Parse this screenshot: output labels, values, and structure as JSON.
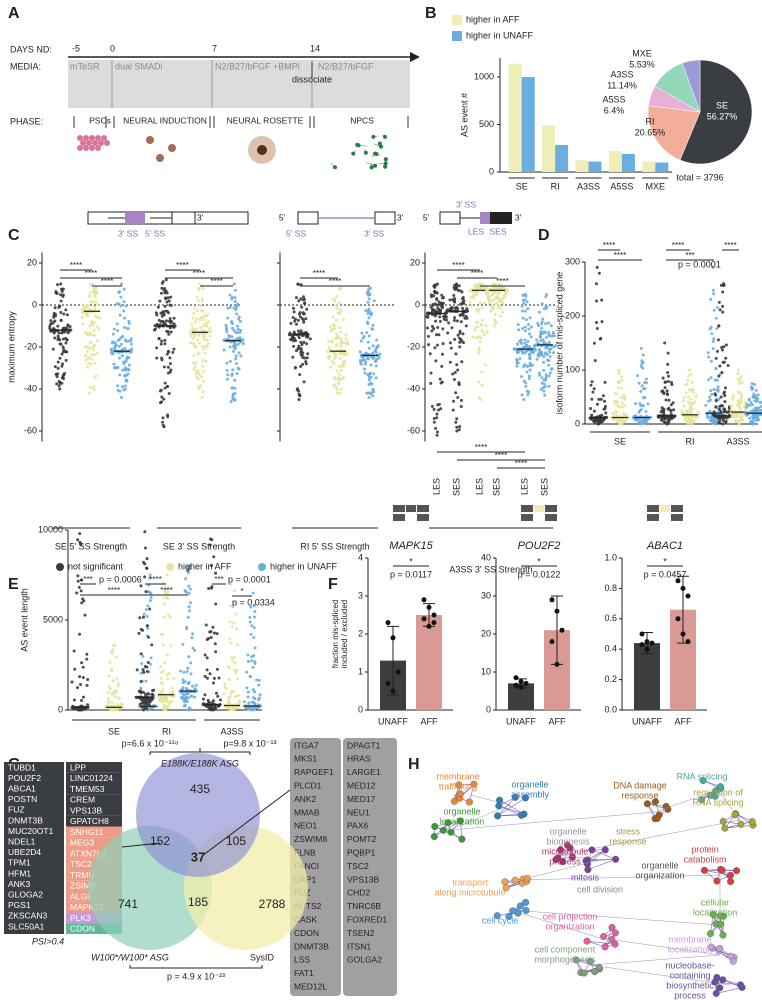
{
  "panel_labels": [
    "A",
    "B",
    "C",
    "D",
    "E",
    "F",
    "G",
    "H"
  ],
  "timeline": {
    "days_label": "DAYS ND:",
    "days": [
      "-5",
      "0",
      "7",
      "14"
    ],
    "media_label": "MEDIA:",
    "media": [
      "mTeSR",
      "dual SMADi",
      "N2/B27/bFGF +BMPi",
      "N2/B27/bFGF"
    ],
    "note": "dissociate",
    "phase_label": "PHASE:",
    "phases": [
      "PSCs",
      "NEURAL INDUCTION",
      "NEURAL ROSETTE",
      "NPCS"
    ]
  },
  "chart_data": [
    {
      "type": "bar",
      "categories": [
        "SE",
        "RI",
        "A3SS",
        "A5SS",
        "MXE"
      ],
      "series": [
        {
          "name": "higher in AFF",
          "color": "#efedb8",
          "values": [
            1140,
            490,
            125,
            220,
            110
          ]
        },
        {
          "name": "higher in UNAFF",
          "color": "#6aaee0",
          "values": [
            1000,
            285,
            110,
            190,
            100
          ]
        }
      ],
      "ylabel": "AS event #",
      "ylim": [
        0,
        1200
      ],
      "yticks": [
        0,
        500,
        1000
      ]
    },
    {
      "type": "pie",
      "categories": [
        "SE",
        "RI",
        "A5SS",
        "A3SS",
        "MXE"
      ],
      "values": [
        56.27,
        20.65,
        6.4,
        11.14,
        5.53
      ],
      "value_labels": [
        "56.27%",
        "20.65%",
        "6.4%",
        "11.14%",
        "5.53%"
      ],
      "colors": [
        "#3a3d42",
        "#f2ae98",
        "#e8b0d8",
        "#93d6b8",
        "#9a9ad6"
      ],
      "total_label": "total = 3796"
    },
    {
      "type": "strip",
      "ylabel": "maximum entropy",
      "ylim": [
        -65,
        25
      ],
      "yticks": [
        20,
        0,
        -20,
        -40,
        -60
      ],
      "series": [
        {
          "name": "not significant",
          "color": "#3b3b3b"
        },
        {
          "name": "higher in AFF",
          "color": "#e6e49c"
        },
        {
          "name": "higher in UNAFF",
          "color": "#6aaee0"
        }
      ],
      "groups": [
        {
          "label": "SE 5' SS Strength",
          "columns": [
            {
              "median": -12,
              "min": -40,
              "max": 10
            },
            {
              "median": -3,
              "min": -42,
              "max": 10
            },
            {
              "median": -22,
              "min": -44,
              "max": 10
            }
          ]
        },
        {
          "label": "SE 3' SS Strength",
          "columns": [
            {
              "median": -10,
              "min": -58,
              "max": 12
            },
            {
              "median": -13,
              "min": -44,
              "max": 10
            },
            {
              "median": -17,
              "min": -46,
              "max": 10
            }
          ]
        },
        {
          "label": "RI 5' SS Strength",
          "columns": [
            {
              "median": -14,
              "min": -45,
              "max": 10
            },
            {
              "median": -22,
              "min": -42,
              "max": 8
            },
            {
              "median": -24,
              "min": -44,
              "max": 8
            }
          ]
        },
        {
          "label": "A3SS 3' SS Strength",
          "column_labels": [
            "LES",
            "SES",
            "LES",
            "SES",
            "LES",
            "SES"
          ],
          "columns": [
            {
              "median": -4,
              "min": -62,
              "max": 10
            },
            {
              "median": -3,
              "min": -60,
              "max": 10
            },
            {
              "median": 7,
              "min": -45,
              "max": 10
            },
            {
              "median": 7,
              "min": -10,
              "max": 10
            },
            {
              "median": -21,
              "min": -45,
              "max": 5
            },
            {
              "median": -19,
              "min": -43,
              "max": 5
            }
          ]
        }
      ],
      "annotations": [
        "****",
        "****",
        "****",
        "****",
        "****",
        "****",
        "****",
        "****",
        "****",
        "****",
        "****",
        "****",
        "****",
        "****"
      ],
      "diagram_labels": [
        "3'",
        "3' SS",
        "5' SS",
        "5'",
        "3'",
        "5' SS",
        "3' SS",
        "5'",
        "3'",
        "3' SS",
        "LES",
        "SES"
      ]
    },
    {
      "type": "strip",
      "ylabel": "isoform number of mis-spliced gene",
      "ylim": [
        0,
        300
      ],
      "yticks": [
        0,
        100,
        200,
        300
      ],
      "colors": [
        "#3b3b3b",
        "#e6e49c",
        "#6aaee0"
      ],
      "groups": [
        {
          "label": "SE",
          "columns": [
            {
              "median": 12,
              "min": 0,
              "max": 290
            },
            {
              "median": 12,
              "min": 0,
              "max": 100
            },
            {
              "median": 12,
              "min": 0,
              "max": 140
            }
          ]
        },
        {
          "label": "RI",
          "columns": [
            {
              "median": 15,
              "min": 0,
              "max": 150
            },
            {
              "median": 17,
              "min": 0,
              "max": 100
            },
            {
              "median": 20,
              "min": 0,
              "max": 290
            }
          ]
        },
        {
          "label": "A3SS",
          "columns": [
            {
              "median": 15,
              "min": 0,
              "max": 260
            },
            {
              "median": 22,
              "min": 0,
              "max": 100
            },
            {
              "median": 20,
              "min": 0,
              "max": 75
            }
          ]
        }
      ],
      "annotations": [
        "****",
        "****",
        "****",
        "***",
        "****"
      ],
      "p_labels": [
        "p = 0.0001"
      ]
    },
    {
      "type": "strip",
      "ylabel": "AS event length",
      "ylim": [
        0,
        10000
      ],
      "yticks": [
        0,
        5000,
        10000
      ],
      "colors": [
        "#3b3b3b",
        "#e6e49c",
        "#6aaee0"
      ],
      "groups": [
        {
          "label": "SE",
          "columns": [
            {
              "median": 150,
              "min": 0,
              "max": 9800
            },
            {
              "median": 150,
              "min": 0,
              "max": 3600
            },
            {
              "median": 200,
              "min": 0,
              "max": 7500
            }
          ]
        },
        {
          "label": "RI",
          "columns": [
            {
              "median": 700,
              "min": 0,
              "max": 9900
            },
            {
              "median": 850,
              "min": 0,
              "max": 7500
            },
            {
              "median": 1050,
              "min": 0,
              "max": 8000
            }
          ]
        },
        {
          "label": "A3SS",
          "columns": [
            {
              "median": 300,
              "min": 0,
              "max": 9500
            },
            {
              "median": 250,
              "min": 0,
              "max": 7000
            },
            {
              "median": 220,
              "min": 0,
              "max": 6500
            }
          ]
        }
      ],
      "annotations": [
        "***",
        "****",
        "****",
        "****",
        "***",
        "*"
      ],
      "p_labels": [
        "p = 0.0006",
        "p = 0.0001",
        "p = 0.0334"
      ]
    },
    {
      "type": "errorbar",
      "title": "MAPK15",
      "ylabel": [
        "fraction mis-spliced",
        "included / excluded"
      ],
      "categories": [
        "UNAFF",
        "AFF"
      ],
      "colors": [
        "#3d3d3d",
        "#d99a96"
      ],
      "values": [
        1.3,
        2.5
      ],
      "errors": [
        0.9,
        0.3
      ],
      "points": [
        [
          2.3,
          1.9,
          1.0,
          0.7,
          0.5
        ],
        [
          2.9,
          2.7,
          2.5,
          2.4,
          2.2,
          2.3
        ]
      ],
      "ylim": [
        0,
        4
      ],
      "yticks": [
        0,
        1,
        2,
        3,
        4
      ],
      "annotation": "*",
      "p_label": "p = 0.0117"
    },
    {
      "type": "errorbar",
      "title": "POU2F2",
      "categories": [
        "UNAFF",
        "AFF"
      ],
      "colors": [
        "#3d3d3d",
        "#d99a96"
      ],
      "values": [
        7,
        21
      ],
      "errors": [
        1.2,
        9
      ],
      "points": [
        [
          8.5,
          7.5,
          7,
          6.5,
          6
        ],
        [
          29,
          26,
          21,
          18,
          12
        ]
      ],
      "ylim": [
        0,
        40
      ],
      "yticks": [
        0,
        10,
        20,
        30,
        40
      ],
      "annotation": "*",
      "p_label": "p = 0.0122"
    },
    {
      "type": "errorbar",
      "title": "ABAC1",
      "categories": [
        "UNAFF",
        "AFF"
      ],
      "colors": [
        "#3d3d3d",
        "#d99a96"
      ],
      "values": [
        0.44,
        0.66
      ],
      "errors": [
        0.07,
        0.22
      ],
      "points": [
        [
          0.5,
          0.45,
          0.44,
          0.43,
          0.4
        ],
        [
          0.85,
          0.8,
          0.75,
          0.6,
          0.5,
          0.45
        ]
      ],
      "ylim": [
        0,
        1
      ],
      "yticks": [
        {
          "value": 0,
          "label": "0.0"
        },
        0.2,
        0.4,
        0.6,
        0.8,
        {
          "value": 1,
          "label": "1.0"
        }
      ],
      "annotation": "*",
      "p_label": "p = 0.0457"
    }
  ],
  "venn": {
    "sets": [
      "E188K/E188K ASG",
      "W100*/W100* ASG",
      "SysID"
    ],
    "regions": [
      435,
      152,
      105,
      37,
      741,
      185,
      2788
    ],
    "pvalues": [
      "p=6.6 x 10⁻¹¹⁸",
      "p=9.8 x 10⁻¹³",
      "p = 4.9 x 10⁻²³"
    ]
  },
  "gene_lists": {
    "left_black": [
      "TUBD1",
      "POU2F2",
      "ABCA1",
      "POSTN",
      "FUZ",
      "DNMT3B",
      "MUC20OT1",
      "NDEL1",
      "UBE2D4",
      "TPM1",
      "HFM1",
      "ANK3",
      "GLOGA2",
      "PGS1",
      "ZKSCAN3",
      "SLC50A1"
    ],
    "left_colored": [
      {
        "name": "LPP",
        "color": "#3a3d42"
      },
      {
        "name": "LINC01224",
        "color": "#3a3d42"
      },
      {
        "name": "TMEM53",
        "color": "#3a3d42"
      },
      {
        "name": "CREM",
        "color": "#3a3d42"
      },
      {
        "name": "VPS13B",
        "color": "#3a3d42"
      },
      {
        "name": "GPATCH8",
        "color": "#3a3d42"
      },
      {
        "name": "SNHG11",
        "color": "#ee9c86"
      },
      {
        "name": "MEG3",
        "color": "#ee9c86"
      },
      {
        "name": "ATXN7L2",
        "color": "#ee9c86"
      },
      {
        "name": "TSC2",
        "color": "#ee9c86"
      },
      {
        "name": "TRMU",
        "color": "#ee9c86"
      },
      {
        "name": "ZSIM8",
        "color": "#ee9c86"
      },
      {
        "name": "ALG5",
        "color": "#ee9c86"
      },
      {
        "name": "MAPK15",
        "color": "#ee9c86"
      },
      {
        "name": "PLK3",
        "color": "#c69ad8"
      },
      {
        "name": "CDON",
        "color": "#5fb89a"
      }
    ],
    "note": "PSI>0.4",
    "right_1": [
      "ITGA7",
      "MKS1",
      "RAPGEF1",
      "PLCD1",
      "ANK2",
      "MMAB",
      "NEO1",
      "ZSWIM8",
      "FLNB",
      "FANCI",
      "UAP1",
      "FUZ",
      "AUTS2",
      "CASK",
      "CDON",
      "DNMT3B",
      "LSS",
      "FAT1",
      "MED12L"
    ],
    "right_2": [
      "DPAGT1",
      "HRAS",
      "LARGE1",
      "MED12",
      "MED17",
      "NEU1",
      "PAX6",
      "POMT2",
      "PQBP1",
      "TSC2",
      "VPS13B",
      "CHD2",
      "TNRC6B",
      "FOXRED1",
      "TSEN2",
      "ITSN1",
      "GOLGA2"
    ]
  },
  "network": {
    "labels": [
      {
        "lines": [
          "membrane",
          "trafficking"
        ],
        "color": "#e8873a"
      },
      {
        "lines": [
          "organelle",
          "assembly"
        ],
        "color": "#2c7fb8"
      },
      {
        "lines": [
          "organelle",
          "localization"
        ],
        "color": "#3a9a3a"
      },
      {
        "lines": [
          "DNA damage",
          "response"
        ],
        "color": "#9c5a1e"
      },
      {
        "lines": [
          "RNA splicing"
        ],
        "color": "#4aa89c"
      },
      {
        "lines": [
          "regulation of",
          "RNA splicing"
        ],
        "color": "#a6a636"
      },
      {
        "lines": [
          "stress",
          "response"
        ],
        "color": "#a89a40"
      },
      {
        "lines": [
          "organelle",
          "biogenesis"
        ],
        "color": "#999999"
      },
      {
        "lines": [
          "microtubule",
          "process"
        ],
        "color": "#b0306a"
      },
      {
        "lines": [
          "mitosis"
        ],
        "color": "#7b3fa0"
      },
      {
        "lines": [
          "organelle",
          "organization"
        ],
        "color": "#555555"
      },
      {
        "lines": [
          "cell division"
        ],
        "color": "#888888"
      },
      {
        "lines": [
          "transport",
          "along microtubule"
        ],
        "color": "#f0a050"
      },
      {
        "lines": [
          "protein",
          "catabolism"
        ],
        "color": "#d04040"
      },
      {
        "lines": [
          "cellular",
          "localization"
        ],
        "color": "#6ab04c"
      },
      {
        "lines": [
          "cell cycle"
        ],
        "color": "#4a9ad8"
      },
      {
        "lines": [
          "cell projection",
          "organization"
        ],
        "color": "#e060a0"
      },
      {
        "lines": [
          "membrane",
          "localization"
        ],
        "color": "#c8a0d8"
      },
      {
        "lines": [
          "cell component",
          "morphogenesis"
        ],
        "color": "#80a080"
      },
      {
        "lines": [
          "nucleobase-",
          "containing",
          "biosynthetic",
          "process"
        ],
        "color": "#6a50a0"
      }
    ]
  }
}
